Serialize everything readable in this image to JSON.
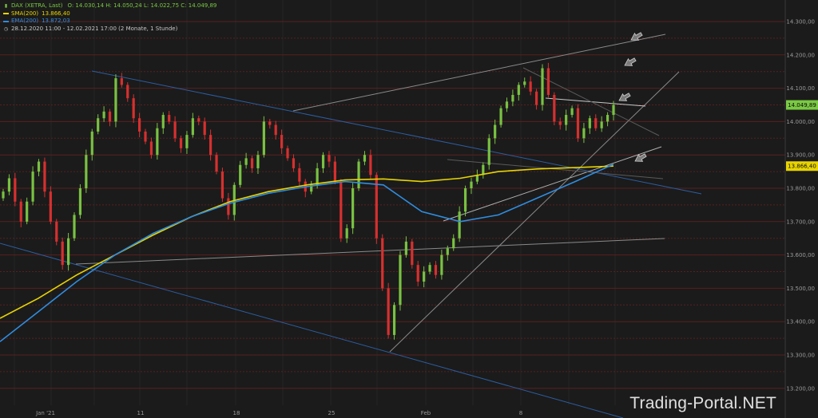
{
  "legend": {
    "instrument": "DAX (XETRA, Last)",
    "ohlc": "O: 14.030,14   H: 14.050,24   L: 14.022,75   C: 14.049,89",
    "sma_label": "SMA(200)",
    "sma_value": "13.866,40",
    "ema_label": "EMA(200)",
    "ema_value": "13.872,03",
    "range": "28.12.2020 11:00 - 12.02.2021 17:00   (2 Monate, 1 Stunde)"
  },
  "watermark": "Trading-Portal.NET",
  "colors": {
    "background": "#1b1b1b",
    "grid_red": "#5a1f1f",
    "up_candle": "#79c142",
    "down_candle": "#d6302f",
    "sma": "#e8d400",
    "ema": "#2f8de0",
    "last_price_badge": "#7ac943",
    "sma_badge": "#e8d400"
  },
  "chart_data": {
    "type": "candlestick",
    "interval": "1 Stunde",
    "y_axis": {
      "ylim": [
        13180,
        14350
      ],
      "ticks": [
        "13.200,00",
        "13.300,00",
        "13.400,00",
        "13.500,00",
        "13.600,00",
        "13.700,00",
        "13.800,00",
        "13.900,00",
        "14.000,00",
        "14.100,00",
        "14.200,00",
        "14.300,00"
      ],
      "tick_values": [
        13200,
        13300,
        13400,
        13500,
        13600,
        13700,
        13800,
        13900,
        14000,
        14100,
        14200,
        14300
      ]
    },
    "x_axis": {
      "labels": [
        "Jan '21",
        "11",
        "18",
        "25",
        "Feb",
        "8"
      ]
    },
    "last_price": {
      "label": "14.049,89",
      "value": 14049.89
    },
    "sma_marker": {
      "label": "13.866,40",
      "value": 13866.4
    },
    "series": [
      {
        "name": "DAX (XETRA, Last)",
        "values": [
          13790,
          13830,
          13760,
          13700,
          13760,
          13850,
          13880,
          13790,
          13700,
          13640,
          13570,
          13650,
          13720,
          13800,
          13900,
          13970,
          14010,
          14030,
          14000,
          14130,
          14110,
          14070,
          14010,
          13970,
          13940,
          13900,
          13980,
          14020,
          14000,
          13950,
          13920,
          13960,
          14010,
          14000,
          13960,
          13900,
          13850,
          13770,
          13720,
          13810,
          13870,
          13890,
          13860,
          13900,
          14000,
          13990,
          13960,
          13920,
          13890,
          13860,
          13820,
          13790,
          13810,
          13860,
          13900,
          13880,
          13820,
          13650,
          13680,
          13800,
          13880,
          13900,
          13840,
          13650,
          13500,
          13360,
          13450,
          13600,
          13640,
          13570,
          13520,
          13550,
          13570,
          13540,
          13600,
          13620,
          13650,
          13730,
          13800,
          13820,
          13840,
          13870,
          13950,
          13990,
          14040,
          14060,
          14080,
          14110,
          14120,
          14090,
          14050,
          14160,
          14080,
          14000,
          13990,
          14020,
          14040,
          13950,
          13980,
          14010,
          13980,
          14000,
          14020,
          14049.89
        ]
      },
      {
        "name": "SMA(200)",
        "values": [
          13410,
          13470,
          13540,
          13600,
          13660,
          13715,
          13760,
          13790,
          13810,
          13825,
          13828,
          13820,
          13830,
          13850,
          13858,
          13862,
          13866.4
        ]
      },
      {
        "name": "EMA(200)",
        "values": [
          13340,
          13430,
          13520,
          13600,
          13665,
          13715,
          13755,
          13785,
          13805,
          13820,
          13810,
          13730,
          13700,
          13720,
          13770,
          13820,
          13872.03
        ]
      }
    ],
    "annotations": [
      {
        "type": "arrow",
        "direction": "left"
      },
      {
        "type": "arrow",
        "direction": "left"
      },
      {
        "type": "arrow",
        "direction": "left"
      },
      {
        "type": "arrow",
        "direction": "left"
      }
    ]
  }
}
